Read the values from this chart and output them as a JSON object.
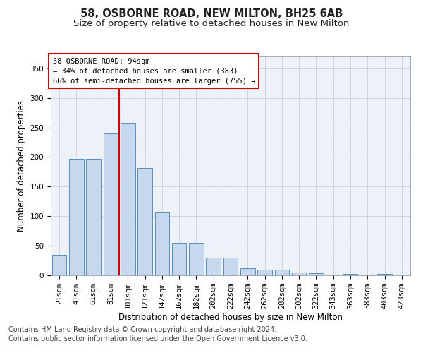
{
  "title1": "58, OSBORNE ROAD, NEW MILTON, BH25 6AB",
  "title2": "Size of property relative to detached houses in New Milton",
  "xlabel": "Distribution of detached houses by size in New Milton",
  "ylabel": "Number of detached properties",
  "categories": [
    "21sqm",
    "41sqm",
    "61sqm",
    "81sqm",
    "101sqm",
    "121sqm",
    "142sqm",
    "162sqm",
    "182sqm",
    "202sqm",
    "222sqm",
    "242sqm",
    "262sqm",
    "282sqm",
    "302sqm",
    "322sqm",
    "343sqm",
    "363sqm",
    "383sqm",
    "403sqm",
    "423sqm"
  ],
  "values": [
    35,
    197,
    197,
    240,
    258,
    181,
    107,
    55,
    55,
    30,
    30,
    12,
    10,
    10,
    5,
    3,
    0,
    2,
    0,
    2,
    1
  ],
  "bar_color": "#c5d8ed",
  "bar_edge_color": "#5a8fbb",
  "annotation_line1": "58 OSBORNE ROAD: 94sqm",
  "annotation_line2": "← 34% of detached houses are smaller (383)",
  "annotation_line3": "66% of semi-detached houses are larger (755) →",
  "vline_x": 4.0,
  "vline_color": "#cc0000",
  "annotation_box_color": "#ffffff",
  "annotation_box_edge": "#cc0000",
  "footnote1": "Contains HM Land Registry data © Crown copyright and database right 2024.",
  "footnote2": "Contains public sector information licensed under the Open Government Licence v3.0.",
  "ylim": [
    0,
    370
  ],
  "yticks": [
    0,
    50,
    100,
    150,
    200,
    250,
    300,
    350
  ],
  "grid_color": "#ccd5e5",
  "bg_color": "#edf1f8",
  "title1_fontsize": 10.5,
  "title2_fontsize": 9.5,
  "xlabel_fontsize": 8.5,
  "ylabel_fontsize": 8.5,
  "footnote_fontsize": 7.0,
  "tick_fontsize": 7.5,
  "annot_fontsize": 7.5
}
